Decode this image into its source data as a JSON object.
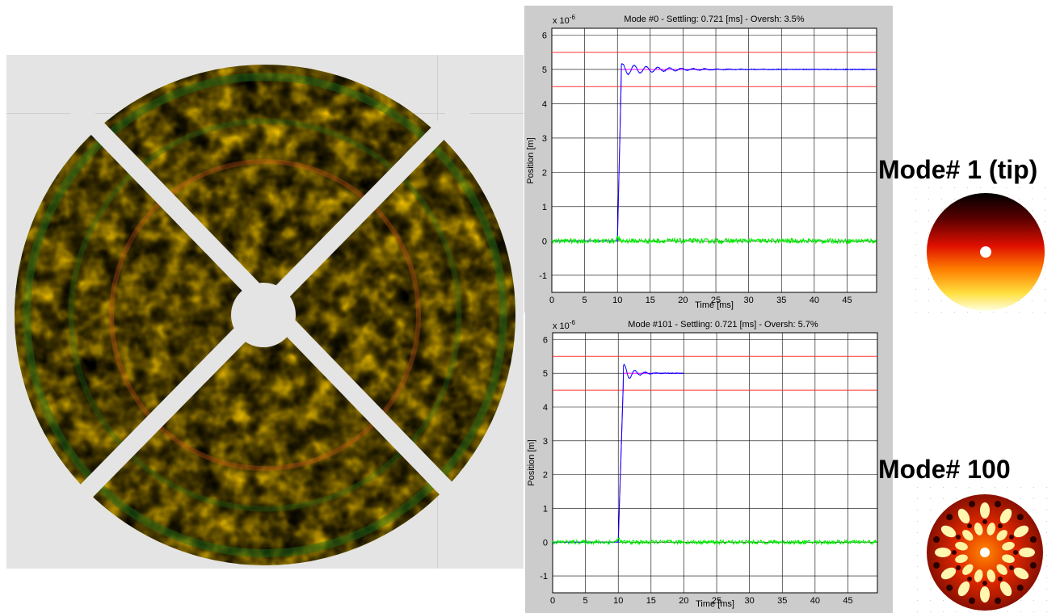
{
  "colors": {
    "reference": "#0000ff",
    "response": "#ff00ff",
    "error": "#00ee00",
    "band": "#ff3333",
    "plot_bg": "#ffffff",
    "figure_bg": "#cccccc"
  },
  "mode_labels": {
    "tip": "Mode# 1 (tip)",
    "hundred": "Mode# 100"
  },
  "chart_data": [
    {
      "type": "line",
      "title": "Mode #0 - Settling: 0.721 [ms] - Oversh: 3.5%",
      "xlabel": "Time [ms]",
      "ylabel": "Position [m]",
      "exponent_label": "x 10",
      "exponent_power": "-6",
      "xlim": [
        0,
        49.5
      ],
      "ylim": [
        -1.5,
        6.2
      ],
      "x_ticks": [
        0,
        5,
        10,
        15,
        20,
        25,
        30,
        35,
        40,
        45
      ],
      "y_ticks": [
        -1,
        0,
        1,
        2,
        3,
        4,
        5,
        6
      ],
      "grid": true,
      "settling_band": [
        4.5,
        5.5
      ],
      "step_time": 10,
      "final_value": 5,
      "rise_end": 10.6,
      "overshoot_peak": 5.17,
      "oscillation_decay_ms": 5.5,
      "oscillation_period_ms": 1.8,
      "response_end_time": 49.5,
      "error_noise_amplitude": 0.07,
      "series": []
    },
    {
      "type": "line",
      "title": "Mode #101 - Settling: 0.721 [ms] - Oversh: 5.7%",
      "xlabel": "Time [ms]",
      "ylabel": "Position [m]",
      "exponent_label": "x 10",
      "exponent_power": "-6",
      "xlim": [
        0,
        49.5
      ],
      "ylim": [
        -1.5,
        6.2
      ],
      "x_ticks": [
        0,
        5,
        10,
        15,
        20,
        25,
        30,
        35,
        40,
        45
      ],
      "y_ticks": [
        -1,
        0,
        1,
        2,
        3,
        4,
        5,
        6
      ],
      "grid": true,
      "settling_band": [
        4.5,
        5.5
      ],
      "step_time": 10,
      "final_value": 5,
      "rise_end": 10.8,
      "overshoot_peak": 5.28,
      "oscillation_decay_ms": 1.5,
      "oscillation_period_ms": 1.6,
      "response_end_time": 20,
      "error_noise_amplitude": 0.06,
      "series": []
    }
  ]
}
